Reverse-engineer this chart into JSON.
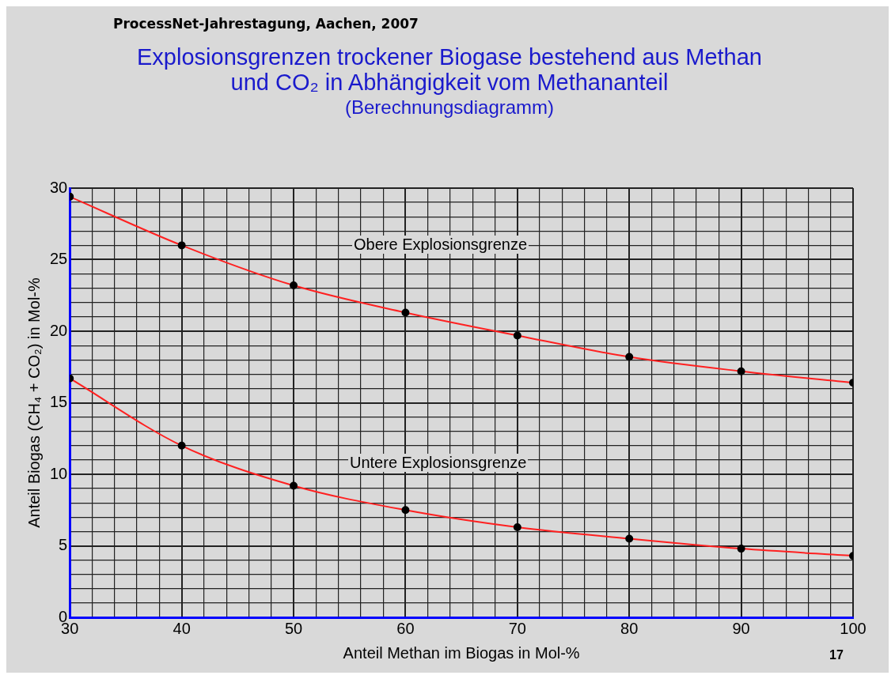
{
  "chart_data": {
    "type": "line",
    "title": "Explosionsgrenzen trockener Biogase bestehend aus Methan und CO₂ in Abhängigkeit vom Methananteil",
    "subtitle": "(Berechnungsdiagramm)",
    "xlabel": "Anteil Methan im Biogas in Mol-%",
    "ylabel": "Anteil Biogas (CH₄ + CO₂) in Mol-%",
    "x": [
      30,
      40,
      50,
      60,
      70,
      80,
      90,
      100
    ],
    "series": [
      {
        "color": "#ff2020",
        "values": [
          29.4,
          26.0,
          23.2,
          21.3,
          19.7,
          18.2,
          17.2,
          16.4
        ]
      },
      {
        "color": "#ff2020",
        "values": [
          16.7,
          12.0,
          9.2,
          7.5,
          6.3,
          5.5,
          4.8,
          4.3
        ]
      }
    ],
    "xlim": [
      30,
      100
    ],
    "ylim": [
      0,
      30
    ],
    "xticks": [
      30,
      {
        "value": 32,
        "label": null
      },
      {
        "value": 34,
        "label": null
      },
      {
        "value": 36,
        "label": null
      },
      {
        "value": 38,
        "label": null
      },
      40,
      {
        "value": 42,
        "label": null
      },
      {
        "value": 44,
        "label": null
      },
      {
        "value": 46,
        "label": null
      },
      {
        "value": 48,
        "label": null
      },
      50,
      {
        "value": 52,
        "label": null
      },
      {
        "value": 54,
        "label": null
      },
      {
        "value": 56,
        "label": null
      },
      {
        "value": 58,
        "label": null
      },
      60,
      {
        "value": 62,
        "label": null
      },
      {
        "value": 64,
        "label": null
      },
      {
        "value": 66,
        "label": null
      },
      {
        "value": 68,
        "label": null
      },
      70,
      {
        "value": 72,
        "label": null
      },
      {
        "value": 74,
        "label": null
      },
      {
        "value": 76,
        "label": null
      },
      {
        "value": 78,
        "label": null
      },
      80,
      {
        "value": 82,
        "label": null
      },
      {
        "value": 84,
        "label": null
      },
      {
        "value": 86,
        "label": null
      },
      {
        "value": 88,
        "label": null
      },
      90,
      {
        "value": 92,
        "label": null
      },
      {
        "value": 94,
        "label": null
      },
      {
        "value": 96,
        "label": null
      },
      {
        "value": 98,
        "label": null
      },
      100
    ],
    "yticks": [
      0,
      {
        "value": 1,
        "label": null
      },
      {
        "value": 2,
        "label": null
      },
      {
        "value": 3,
        "label": null
      },
      {
        "value": 4,
        "label": null
      },
      5,
      {
        "value": 6,
        "label": null
      },
      {
        "value": 7,
        "label": null
      },
      {
        "value": 8,
        "label": null
      },
      {
        "value": 9,
        "label": null
      },
      10,
      {
        "value": 11,
        "label": null
      },
      {
        "value": 12,
        "label": null
      },
      {
        "value": 13,
        "label": null
      },
      {
        "value": 14,
        "label": null
      },
      15,
      {
        "value": 16,
        "label": null
      },
      {
        "value": 17,
        "label": null
      },
      {
        "value": 18,
        "label": null
      },
      {
        "value": 19,
        "label": null
      },
      20,
      {
        "value": 21,
        "label": null
      },
      {
        "value": 22,
        "label": null
      },
      {
        "value": 23,
        "label": null
      },
      {
        "value": 24,
        "label": null
      },
      25,
      {
        "value": 26,
        "label": null
      },
      {
        "value": 27,
        "label": null
      },
      {
        "value": 28,
        "label": null
      },
      {
        "value": 29,
        "label": null
      },
      30
    ],
    "grid": true,
    "marker": "circle",
    "line_style": "solid",
    "legend": false,
    "annotations": [
      "ProcessNet-Jahrestagung, Aachen, 2007",
      "17",
      "Obere Explosionsgrenze",
      "Untere Explosionsgrenze"
    ]
  }
}
